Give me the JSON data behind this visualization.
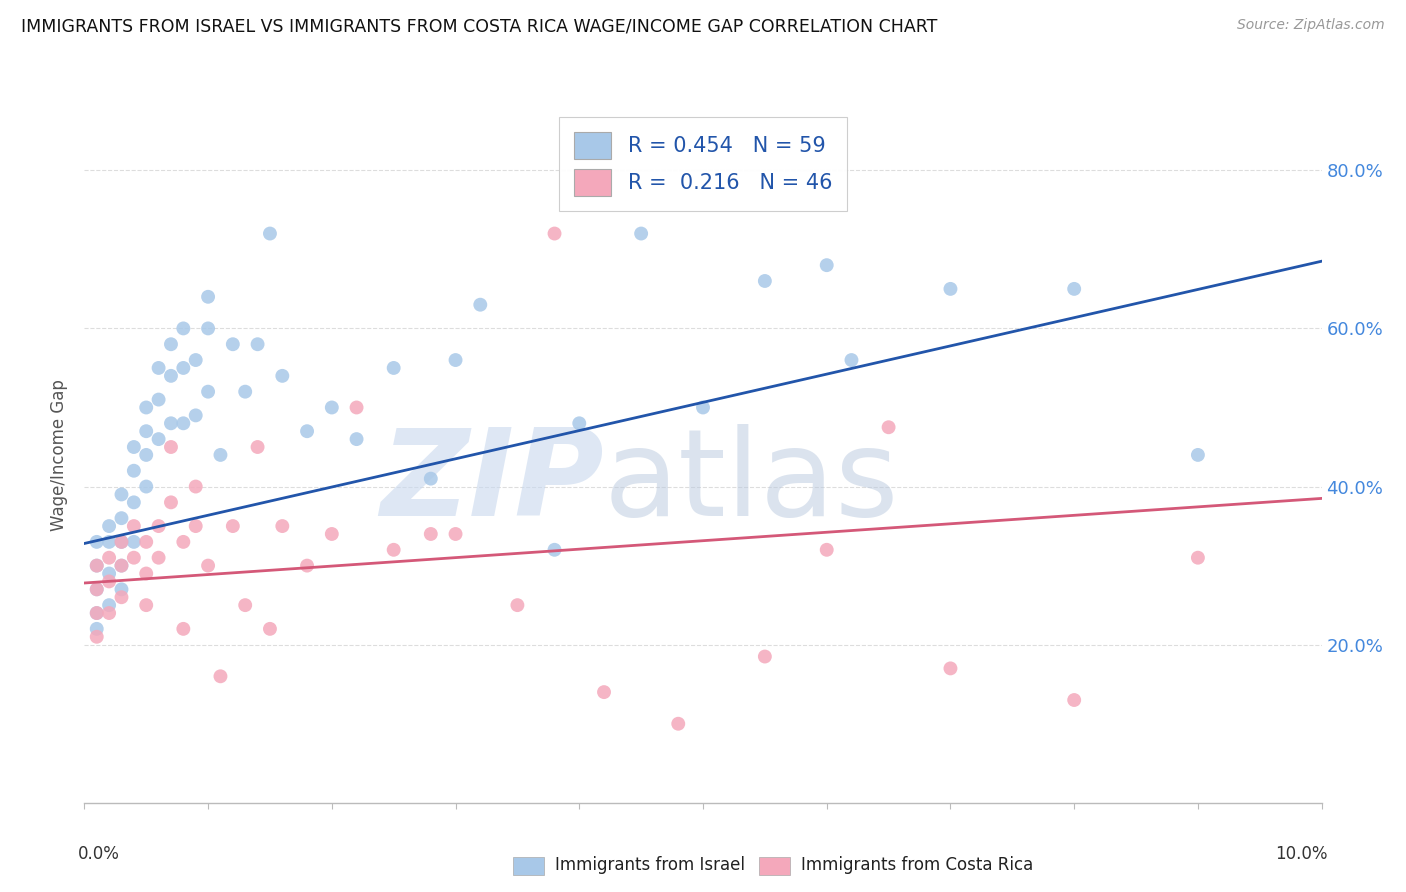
{
  "title": "IMMIGRANTS FROM ISRAEL VS IMMIGRANTS FROM COSTA RICA WAGE/INCOME GAP CORRELATION CHART",
  "source": "Source: ZipAtlas.com",
  "ylabel": "Wage/Income Gap",
  "r_israel": 0.454,
  "n_israel": 59,
  "r_costa_rica": 0.216,
  "n_costa_rica": 46,
  "color_israel": "#a8c8e8",
  "color_costa_rica": "#f4a8bb",
  "color_line_israel": "#2255aa",
  "color_line_costa_rica": "#d45878",
  "color_right_axis": "#4488dd",
  "color_title": "#111111",
  "xlim": [
    0.0,
    0.1
  ],
  "ylim": [
    0.0,
    0.88
  ],
  "yticks_right": [
    0.2,
    0.4,
    0.6,
    0.8
  ],
  "ytick_labels_right": [
    "20.0%",
    "40.0%",
    "60.0%",
    "80.0%"
  ],
  "grid_color": "#dddddd",
  "watermark_zip": "ZIP",
  "watermark_atlas": "atlas",
  "legend_box_color": "#ffffff",
  "trend_israel_x0": 0.0,
  "trend_israel_y0": 0.328,
  "trend_israel_x1": 0.1,
  "trend_israel_y1": 0.685,
  "trend_cr_x0": 0.0,
  "trend_cr_y0": 0.278,
  "trend_cr_x1": 0.1,
  "trend_cr_y1": 0.385,
  "scatter_israel_x": [
    0.001,
    0.001,
    0.001,
    0.001,
    0.001,
    0.002,
    0.002,
    0.002,
    0.002,
    0.003,
    0.003,
    0.003,
    0.003,
    0.003,
    0.004,
    0.004,
    0.004,
    0.004,
    0.005,
    0.005,
    0.005,
    0.005,
    0.006,
    0.006,
    0.006,
    0.007,
    0.007,
    0.007,
    0.008,
    0.008,
    0.008,
    0.009,
    0.009,
    0.01,
    0.01,
    0.01,
    0.011,
    0.012,
    0.013,
    0.014,
    0.015,
    0.016,
    0.018,
    0.02,
    0.022,
    0.025,
    0.028,
    0.03,
    0.032,
    0.038,
    0.04,
    0.045,
    0.05,
    0.055,
    0.06,
    0.062,
    0.07,
    0.08,
    0.09
  ],
  "scatter_israel_y": [
    0.33,
    0.3,
    0.27,
    0.24,
    0.22,
    0.35,
    0.33,
    0.29,
    0.25,
    0.39,
    0.36,
    0.33,
    0.3,
    0.27,
    0.45,
    0.42,
    0.38,
    0.33,
    0.5,
    0.47,
    0.44,
    0.4,
    0.55,
    0.51,
    0.46,
    0.58,
    0.54,
    0.48,
    0.6,
    0.55,
    0.48,
    0.56,
    0.49,
    0.64,
    0.6,
    0.52,
    0.44,
    0.58,
    0.52,
    0.58,
    0.72,
    0.54,
    0.47,
    0.5,
    0.46,
    0.55,
    0.41,
    0.56,
    0.63,
    0.32,
    0.48,
    0.72,
    0.5,
    0.66,
    0.68,
    0.56,
    0.65,
    0.65,
    0.44
  ],
  "scatter_cr_x": [
    0.001,
    0.001,
    0.001,
    0.001,
    0.002,
    0.002,
    0.002,
    0.003,
    0.003,
    0.003,
    0.004,
    0.004,
    0.005,
    0.005,
    0.005,
    0.006,
    0.006,
    0.007,
    0.007,
    0.008,
    0.008,
    0.009,
    0.009,
    0.01,
    0.011,
    0.012,
    0.013,
    0.014,
    0.015,
    0.016,
    0.018,
    0.02,
    0.022,
    0.025,
    0.028,
    0.03,
    0.035,
    0.038,
    0.042,
    0.048,
    0.055,
    0.06,
    0.065,
    0.07,
    0.08,
    0.09
  ],
  "scatter_cr_y": [
    0.3,
    0.27,
    0.24,
    0.21,
    0.31,
    0.28,
    0.24,
    0.33,
    0.3,
    0.26,
    0.35,
    0.31,
    0.33,
    0.29,
    0.25,
    0.35,
    0.31,
    0.45,
    0.38,
    0.33,
    0.22,
    0.4,
    0.35,
    0.3,
    0.16,
    0.35,
    0.25,
    0.45,
    0.22,
    0.35,
    0.3,
    0.34,
    0.5,
    0.32,
    0.34,
    0.34,
    0.25,
    0.72,
    0.14,
    0.1,
    0.185,
    0.32,
    0.475,
    0.17,
    0.13,
    0.31
  ]
}
